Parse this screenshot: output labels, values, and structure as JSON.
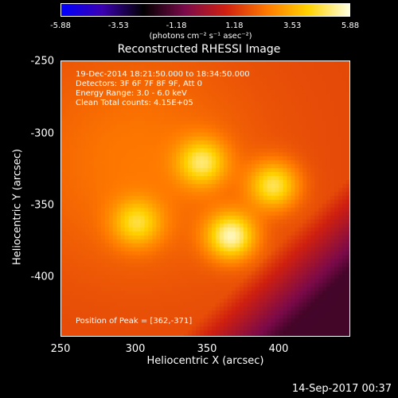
{
  "colorbar": {
    "tick_labels": [
      "-5.88",
      "-3.53",
      "-1.18",
      "1.18",
      "3.53",
      "5.88"
    ],
    "tick_values": [
      -5.88,
      -3.53,
      -1.18,
      1.18,
      3.53,
      5.88
    ],
    "min": -5.88,
    "max": 5.88,
    "unit_label": "(photons cm⁻² s⁻¹ asec⁻²)",
    "colors": [
      "#0000ff",
      "#3b00b0",
      "#000000",
      "#7a0a4a",
      "#d02010",
      "#ff7a00",
      "#ffd200",
      "#ffffe0"
    ]
  },
  "chart_data": {
    "type": "heatmap",
    "title": "Reconstructed RHESSI Image",
    "xlabel": "Heliocentric X (arcsec)",
    "ylabel": "Heliocentric Y (arcsec)",
    "xlim": [
      250,
      440
    ],
    "ylim": [
      -440,
      -250
    ],
    "x_ticks": [
      250,
      300,
      350,
      400
    ],
    "y_ticks": [
      -250,
      -300,
      -350,
      -400
    ],
    "x_tick_labels": [
      "250",
      "300",
      "350",
      "400"
    ],
    "y_tick_labels": [
      "-250",
      "-300",
      "-350",
      "-400"
    ],
    "peak": [
      362,
      -371
    ],
    "annotations": {
      "time_range": "19-Dec-2014 18:21:50.000 to 18:34:50.000",
      "detectors": "Detectors: 3F 6F 7F 8F 9F, Att 0",
      "energy": "Energy Range: 3.0 - 6.0 keV",
      "clean": "Clean    Total counts: 4.15E+05",
      "peak_text": "Position of Peak = [362,-371]"
    },
    "sources": [
      {
        "x": 343,
        "y": -320,
        "flux": 5.0
      },
      {
        "x": 362,
        "y": -371,
        "flux": 5.88
      },
      {
        "x": 390,
        "y": -336,
        "flux": 5.2
      },
      {
        "x": 300,
        "y": -362,
        "flux": 4.6
      }
    ]
  },
  "footer": {
    "timestamp": "14-Sep-2017 00:37"
  }
}
